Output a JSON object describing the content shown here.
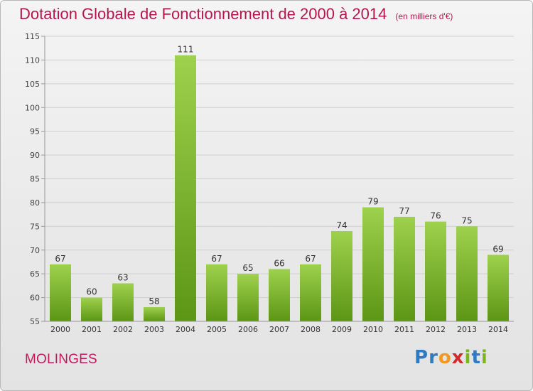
{
  "header": {
    "title": "Dotation Globale de Fonctionnement de 2000 à 2014",
    "subtitle": "(en milliers d'€)"
  },
  "footer": {
    "commune": "MOLINGES",
    "logo_letters": [
      "P",
      "r",
      "o",
      "x",
      "i",
      "t",
      "i"
    ],
    "logo_colors": [
      "#2e7bc4",
      "#2e7bc4",
      "#f39a1e",
      "#d22b2b",
      "#7ab51d",
      "#2e7bc4",
      "#7ab51d"
    ]
  },
  "colors": {
    "bar_top": "#9ed14d",
    "bar_bottom": "#5c9615",
    "title": "#b5164f",
    "commune": "#c2185b"
  },
  "chart_data": {
    "type": "bar",
    "title": "Dotation Globale de Fonctionnement de 2000 à 2014",
    "subtitle": "(en milliers d'€)",
    "categories": [
      "2000",
      "2001",
      "2002",
      "2003",
      "2004",
      "2005",
      "2006",
      "2007",
      "2008",
      "2009",
      "2010",
      "2011",
      "2012",
      "2013",
      "2014"
    ],
    "values": [
      67,
      60,
      63,
      58,
      111,
      67,
      65,
      66,
      67,
      74,
      79,
      77,
      76,
      75,
      69
    ],
    "ylim": [
      55,
      115
    ],
    "yticks": [
      55,
      60,
      65,
      70,
      75,
      80,
      85,
      90,
      95,
      100,
      105,
      110,
      115
    ],
    "xlabel": "",
    "ylabel": "",
    "grid": true,
    "data_labels": true
  }
}
